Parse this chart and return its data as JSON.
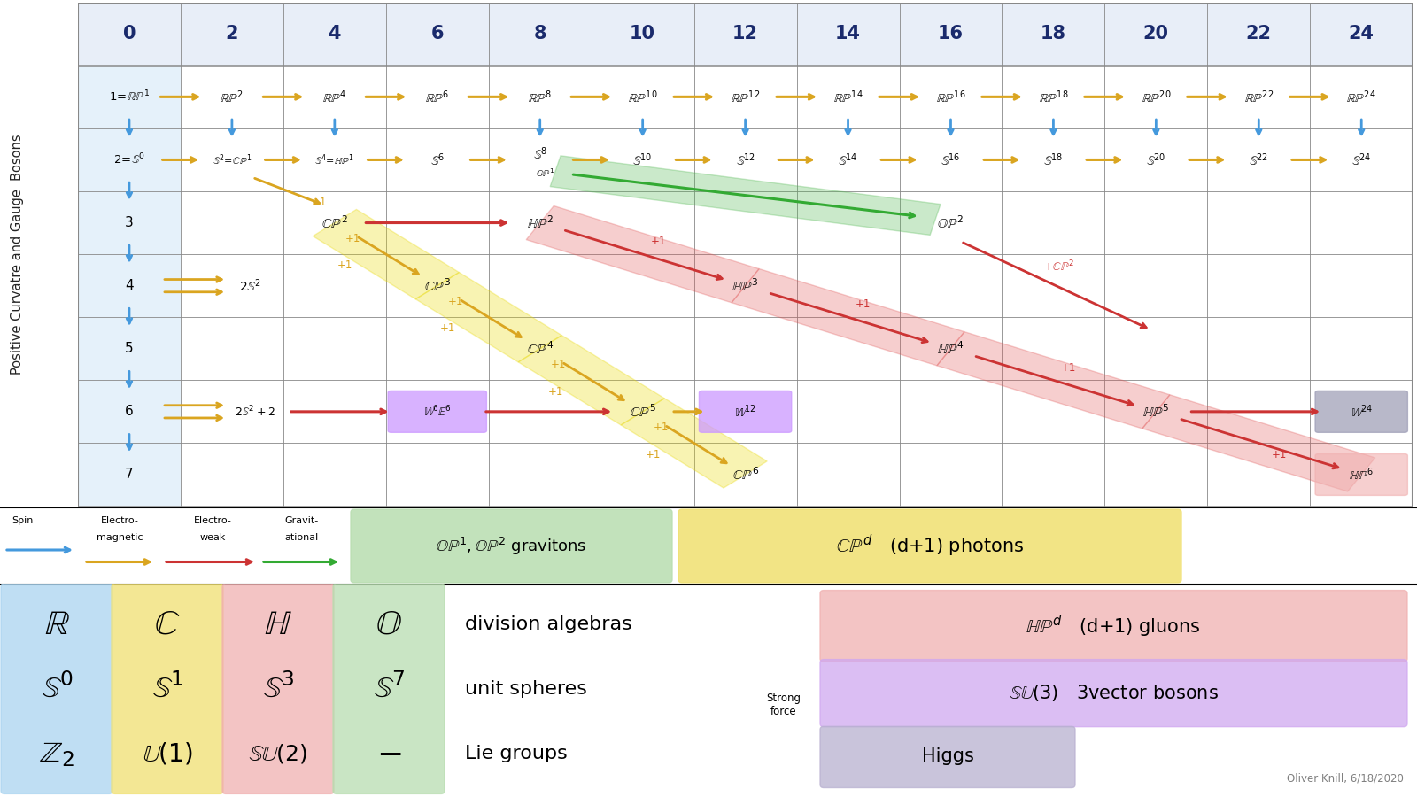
{
  "col_labels": [
    0,
    2,
    4,
    6,
    8,
    10,
    12,
    14,
    16,
    18,
    20,
    22,
    24
  ],
  "col_header_color": "#1a2a6c",
  "arrow_blue": "#4499dd",
  "arrow_yellow": "#DAA520",
  "arrow_red": "#cc3333",
  "arrow_green": "#33aa33",
  "blue_col_bg": "#cce4f7",
  "band_yellow_color": "#e8d800",
  "band_red_color": "#e05050",
  "band_green_color": "#50b850",
  "box_purple": "#cc99ff",
  "box_gray": "#a0a0b8",
  "box_pink": "#f0b0b0",
  "box_green_legend": "#b8ddb0",
  "box_yellow_legend": "#f0e070",
  "box_blue_div": "#aad4f0",
  "box_yellow_div": "#f0e070",
  "box_pink_div": "#f0b0b0",
  "box_green_div": "#b8ddb0",
  "box_pink_gluons": "#f0b0b0",
  "box_purple_vec": "#d0a8f0",
  "box_gray_higgs": "#b8b0d0"
}
